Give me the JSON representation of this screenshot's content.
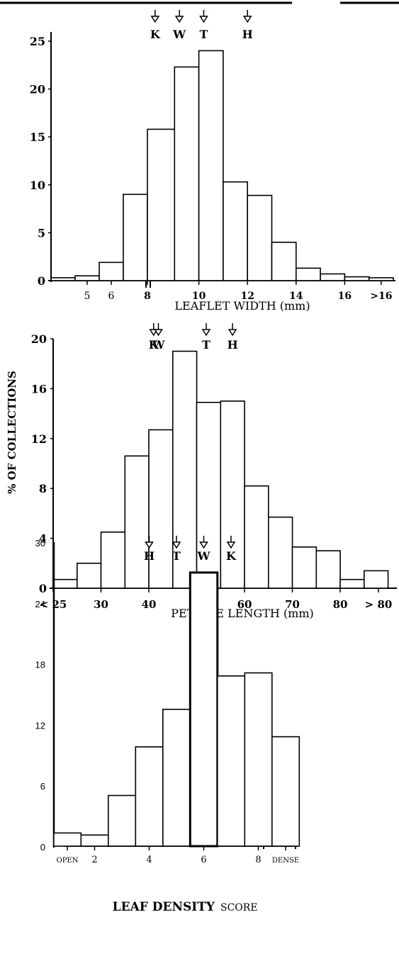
{
  "header": {
    "rule": true
  },
  "shared_ylabel": "% OF COLLECTIONS",
  "chart_data": [
    {
      "type": "bar",
      "xlabel": "LEAFLET WIDTH (mm)",
      "ylim": [
        0,
        25
      ],
      "yticks": [
        0,
        5,
        10,
        15,
        20,
        25
      ],
      "bins": [
        {
          "center": 4.5,
          "value": 0.3
        },
        {
          "center": 5.5,
          "value": 0.5
        },
        {
          "center": 6.5,
          "value": 1.9
        },
        {
          "center": 7.5,
          "value": 9.0
        },
        {
          "center": 8.5,
          "value": 15.8
        },
        {
          "center": 9.5,
          "value": 22.3
        },
        {
          "center": 10.5,
          "value": 24.0
        },
        {
          "center": 11.5,
          "value": 10.3
        },
        {
          "center": 12.5,
          "value": 8.9
        },
        {
          "center": 13.5,
          "value": 4.0
        },
        {
          "center": 14.5,
          "value": 1.3
        },
        {
          "center": 15.5,
          "value": 0.7
        },
        {
          "center": 16.5,
          "value": 0.4
        },
        {
          "center": 17.5,
          "value": 0.3
        }
      ],
      "xticks": [
        {
          "label": "5",
          "at": 5.5
        },
        {
          "label": "6",
          "at": 6.5
        },
        {
          "label": "8",
          "at": 8
        },
        {
          "label": "10",
          "at": 10
        },
        {
          "label": "12",
          "at": 12
        },
        {
          "label": "14",
          "at": 14
        },
        {
          "label": "16",
          "at": 16
        },
        {
          "label": ">16",
          "at": 17.5
        }
      ],
      "markers": [
        {
          "label": "K",
          "at": 8.2
        },
        {
          "label": "W",
          "at": 9.2
        },
        {
          "label": "T",
          "at": 10.2
        },
        {
          "label": "H",
          "at": 12.0
        }
      ]
    },
    {
      "type": "bar",
      "xlabel": "PETIOLE LENGTH (mm)",
      "ylim": [
        0,
        20
      ],
      "yticks": [
        0,
        4,
        8,
        12,
        16,
        20
      ],
      "bins": [
        {
          "center": 22.5,
          "value": 0.7
        },
        {
          "center": 27.5,
          "value": 2.0
        },
        {
          "center": 32.5,
          "value": 4.5
        },
        {
          "center": 37.5,
          "value": 10.6
        },
        {
          "center": 42.5,
          "value": 12.7
        },
        {
          "center": 47.5,
          "value": 19.0
        },
        {
          "center": 52.5,
          "value": 14.9
        },
        {
          "center": 57.5,
          "value": 15.0
        },
        {
          "center": 62.5,
          "value": 8.2
        },
        {
          "center": 67.5,
          "value": 5.7
        },
        {
          "center": 72.5,
          "value": 3.3
        },
        {
          "center": 77.5,
          "value": 3.0
        },
        {
          "center": 82.5,
          "value": 0.7
        },
        {
          "center": 87.5,
          "value": 1.4
        }
      ],
      "xticks": [
        {
          "label": "< 25",
          "at": 20
        },
        {
          "label": "30",
          "at": 30
        },
        {
          "label": "40",
          "at": 40
        },
        {
          "label": "50",
          "at": 50
        },
        {
          "label": "60",
          "at": 60
        },
        {
          "label": "70",
          "at": 70
        },
        {
          "label": "80",
          "at": 80
        },
        {
          "label": "> 80",
          "at": 88
        }
      ],
      "markers": [
        {
          "label": "K",
          "at": 41.0
        },
        {
          "label": "W",
          "at": 42.0
        },
        {
          "label": "T",
          "at": 52.0
        },
        {
          "label": "H",
          "at": 57.5
        }
      ]
    },
    {
      "type": "bar",
      "xlabel": "LEAF DENSITY SCORE",
      "xlabel_parts": [
        "LEAF DENSITY",
        "SCORE"
      ],
      "ylim": [
        0,
        30
      ],
      "yticks": [
        0,
        6,
        12,
        18,
        24,
        30
      ],
      "bins": [
        {
          "center": 1,
          "value": 1.3
        },
        {
          "center": 2,
          "value": 1.1
        },
        {
          "center": 3,
          "value": 5.0
        },
        {
          "center": 4,
          "value": 9.8
        },
        {
          "center": 5,
          "value": 13.5
        },
        {
          "center": 6,
          "value": 27.0
        },
        {
          "center": 7,
          "value": 16.8
        },
        {
          "center": 8,
          "value": 17.1
        },
        {
          "center": 9,
          "value": 10.8
        }
      ],
      "xticks": [
        {
          "label": "OPEN",
          "at": 1
        },
        {
          "label": "2",
          "at": 2
        },
        {
          "label": "4",
          "at": 4
        },
        {
          "label": "6",
          "at": 6
        },
        {
          "label": "8",
          "at": 8
        },
        {
          "label": "DENSE",
          "at": 9
        }
      ],
      "markers": [
        {
          "label": "H",
          "at": 4.0
        },
        {
          "label": "T",
          "at": 5.0
        },
        {
          "label": "W",
          "at": 6.0
        },
        {
          "label": "K",
          "at": 7.0
        }
      ]
    }
  ]
}
